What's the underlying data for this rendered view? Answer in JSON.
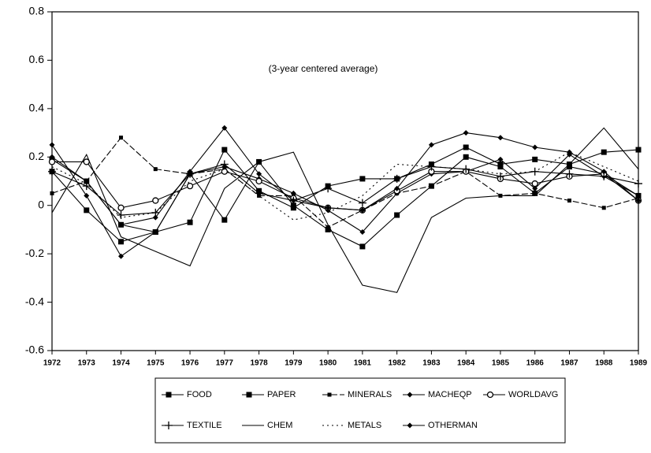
{
  "chart_data": {
    "type": "line",
    "annotation": "(3-year centered average)",
    "x": [
      1972,
      1973,
      1974,
      1975,
      1976,
      1977,
      1978,
      1979,
      1980,
      1981,
      1982,
      1983,
      1984,
      1985,
      1986,
      1987,
      1988,
      1989
    ],
    "xlim": [
      1972,
      1989
    ],
    "ylim": [
      -0.6,
      0.8
    ],
    "yticks": [
      -0.6,
      -0.4,
      -0.2,
      0,
      0.2,
      0.4,
      0.6,
      0.8
    ],
    "series": [
      {
        "name": "FOOD",
        "color": "#000000",
        "marker": "square",
        "dash": "solid",
        "values": [
          0.19,
          0.1,
          -0.08,
          -0.11,
          0.13,
          -0.06,
          0.18,
          0.0,
          -0.1,
          -0.17,
          -0.04,
          0.08,
          0.2,
          0.16,
          0.05,
          0.16,
          0.13,
          0.04
        ]
      },
      {
        "name": "PAPER",
        "color": "#000000",
        "marker": "square",
        "dash": "solid",
        "values": [
          0.14,
          -0.02,
          -0.15,
          -0.11,
          -0.07,
          0.23,
          0.06,
          -0.01,
          0.08,
          0.11,
          0.11,
          0.17,
          0.24,
          0.17,
          0.19,
          0.17,
          0.22,
          0.23
        ]
      },
      {
        "name": "MINERALS",
        "color": "#000000",
        "marker": "smallsquare",
        "dash": "dashed",
        "values": [
          0.05,
          0.1,
          0.28,
          0.15,
          0.13,
          0.15,
          0.04,
          0.04,
          -0.09,
          -0.02,
          0.05,
          0.08,
          0.14,
          0.04,
          0.05,
          0.02,
          -0.01,
          0.03
        ]
      },
      {
        "name": "MACHEQP",
        "color": "#000000",
        "marker": "diamond",
        "dash": "solid",
        "values": [
          0.25,
          0.04,
          -0.21,
          -0.11,
          0.13,
          0.16,
          0.11,
          0.05,
          -0.02,
          -0.11,
          0.05,
          0.13,
          0.14,
          0.19,
          0.07,
          0.21,
          0.12,
          0.04
        ]
      },
      {
        "name": "WORLDAVG",
        "color": "#000000",
        "marker": "circle",
        "dash": "solid",
        "values": [
          0.18,
          0.18,
          -0.01,
          0.02,
          0.08,
          0.14,
          0.1,
          0.03,
          -0.01,
          -0.02,
          0.06,
          0.14,
          0.14,
          0.11,
          0.09,
          0.12,
          0.13,
          0.02
        ]
      },
      {
        "name": "TEXTILE",
        "color": "#000000",
        "marker": "plus",
        "dash": "solid",
        "values": [
          0.14,
          0.08,
          -0.04,
          -0.03,
          0.13,
          0.17,
          0.05,
          0.02,
          0.07,
          0.01,
          0.11,
          0.16,
          0.15,
          0.12,
          0.14,
          0.13,
          0.12,
          0.09
        ]
      },
      {
        "name": "CHEM",
        "color": "#000000",
        "marker": "none",
        "dash": "solid",
        "values": [
          -0.03,
          0.21,
          -0.13,
          -0.19,
          -0.25,
          0.07,
          0.18,
          0.22,
          -0.08,
          -0.33,
          -0.36,
          -0.05,
          0.03,
          0.04,
          0.04,
          0.17,
          0.32,
          0.15
        ]
      },
      {
        "name": "METALS",
        "color": "#000000",
        "marker": "none",
        "dash": "dotted",
        "values": [
          0.16,
          0.09,
          -0.05,
          -0.03,
          0.1,
          0.15,
          0.04,
          -0.06,
          -0.03,
          0.04,
          0.17,
          0.16,
          0.15,
          0.13,
          0.14,
          0.22,
          0.16,
          0.1
        ]
      },
      {
        "name": "OTHERMAN",
        "color": "#000000",
        "marker": "diamond",
        "dash": "solid",
        "values": [
          0.2,
          0.1,
          -0.08,
          -0.05,
          0.14,
          0.32,
          0.13,
          0.02,
          -0.01,
          -0.02,
          0.07,
          0.25,
          0.3,
          0.28,
          0.24,
          0.22,
          0.14,
          0.02
        ]
      }
    ]
  }
}
